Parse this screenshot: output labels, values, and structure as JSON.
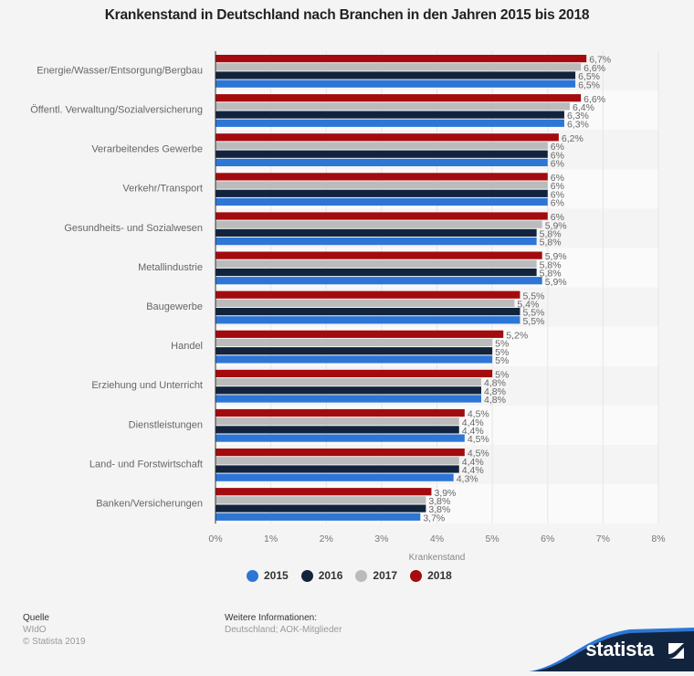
{
  "chart_data": {
    "type": "bar",
    "orientation": "horizontal",
    "title": "Krankenstand in Deutschland nach Branchen in den Jahren 2015 bis 2018",
    "xlabel": "Krankenstand",
    "ylabel": "",
    "xlim": [
      0,
      8
    ],
    "x_ticks": [
      "0%",
      "1%",
      "2%",
      "3%",
      "4%",
      "5%",
      "6%",
      "7%",
      "8%"
    ],
    "grid": true,
    "legend_position": "bottom",
    "categories": [
      "Energie/Wasser/Entsorgung/Bergbau",
      "Öffentl. Verwaltung/Sozialversicherung",
      "Verarbeitendes Gewerbe",
      "Verkehr/Transport",
      "Gesundheits- und Sozialwesen",
      "Metallindustrie",
      "Baugewerbe",
      "Handel",
      "Erziehung und Unterricht",
      "Dienstleistungen",
      "Land- und Forstwirtschaft",
      "Banken/Versicherungen"
    ],
    "series": [
      {
        "name": "2018",
        "color": "#a30b0e",
        "values": [
          6.7,
          6.6,
          6.2,
          6.0,
          6.0,
          5.9,
          5.5,
          5.2,
          5.0,
          4.5,
          4.5,
          3.9
        ],
        "labels": [
          "6,7%",
          "6,6%",
          "6,2%",
          "6%",
          "6%",
          "5,9%",
          "5,5%",
          "5,2%",
          "5%",
          "4,5%",
          "4,5%",
          "3,9%"
        ]
      },
      {
        "name": "2017",
        "color": "#bbbbbb",
        "values": [
          6.6,
          6.4,
          6.0,
          6.0,
          5.9,
          5.8,
          5.4,
          5.0,
          4.8,
          4.4,
          4.4,
          3.8
        ],
        "labels": [
          "6,6%",
          "6,4%",
          "6%",
          "6%",
          "5,9%",
          "5,8%",
          "5,4%",
          "5%",
          "4,8%",
          "4,4%",
          "4,4%",
          "3,8%"
        ]
      },
      {
        "name": "2016",
        "color": "#12243d",
        "values": [
          6.5,
          6.3,
          6.0,
          6.0,
          5.8,
          5.8,
          5.5,
          5.0,
          4.8,
          4.4,
          4.4,
          3.8
        ],
        "labels": [
          "6,5%",
          "6,3%",
          "6%",
          "6%",
          "5,8%",
          "5,8%",
          "5,5%",
          "5%",
          "4,8%",
          "4,4%",
          "4,4%",
          "3,8%"
        ]
      },
      {
        "name": "2015",
        "color": "#2d76d6",
        "values": [
          6.5,
          6.3,
          6.0,
          6.0,
          5.8,
          5.9,
          5.5,
          5.0,
          4.8,
          4.5,
          4.3,
          3.7
        ],
        "labels": [
          "6,5%",
          "6,3%",
          "6%",
          "6%",
          "5,8%",
          "5,9%",
          "5,5%",
          "5%",
          "4,8%",
          "4,5%",
          "4,3%",
          "3,7%"
        ]
      }
    ],
    "legend": [
      {
        "label": "2015",
        "color": "#2d76d6"
      },
      {
        "label": "2016",
        "color": "#12243d"
      },
      {
        "label": "2017",
        "color": "#bbbbbb"
      },
      {
        "label": "2018",
        "color": "#a30b0e"
      }
    ]
  },
  "footer": {
    "source_heading": "Quelle",
    "source": "WIdO",
    "copyright": "© Statista 2019",
    "info_heading": "Weitere Informationen:",
    "info": "Deutschland; AOK-Mitglieder",
    "brand": "statista"
  }
}
